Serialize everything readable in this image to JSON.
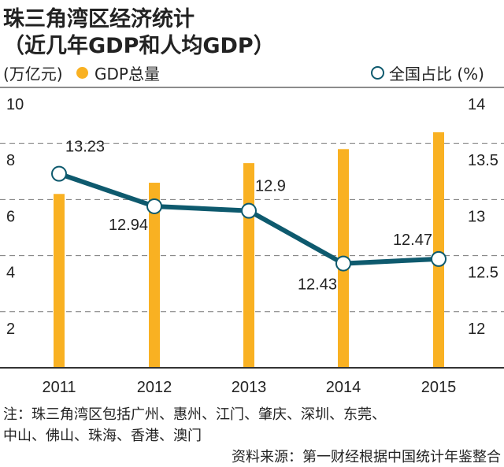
{
  "title": "珠三角湾区经济统计",
  "subtitle": "（近几年GDP和人均GDP）",
  "legend": {
    "unit_left": "(万亿元)",
    "series1": "GDP总量",
    "series2": "全国占比 (%)"
  },
  "colors": {
    "bar": "#F9B122",
    "line": "#0E5A6E",
    "grid": "#777777"
  },
  "chart_data": {
    "type": "bar+line",
    "categories": [
      "2011",
      "2012",
      "2013",
      "2014",
      "2015"
    ],
    "series": [
      {
        "name": "GDP总量",
        "type": "bar",
        "axis": "left",
        "values": [
          6.2,
          6.6,
          7.3,
          7.8,
          8.4
        ]
      },
      {
        "name": "全国占比 (%)",
        "type": "line",
        "axis": "right",
        "values": [
          13.23,
          12.94,
          12.9,
          12.43,
          12.47
        ],
        "labels": [
          "13.23",
          "12.94",
          "12.9",
          "12.43",
          "12.47"
        ]
      }
    ],
    "ylabel": "(万亿元)",
    "ylim": [
      0,
      10
    ],
    "yticks": [
      "2",
      "4",
      "6",
      "8",
      "10"
    ],
    "y2lim": [
      11.5,
      14
    ],
    "y2ticks": [
      "12",
      "12.5",
      "13",
      "13.5",
      "14"
    ],
    "grid": true,
    "legend_position": "top"
  },
  "notes": {
    "line1": "注：珠三角湾区包括广州、惠州、江门、肇庆、深圳、东莞、",
    "line2": "中山、佛山、珠海、香港、澳门",
    "source": "资料来源：第一财经根据中国统计年鉴整合"
  }
}
